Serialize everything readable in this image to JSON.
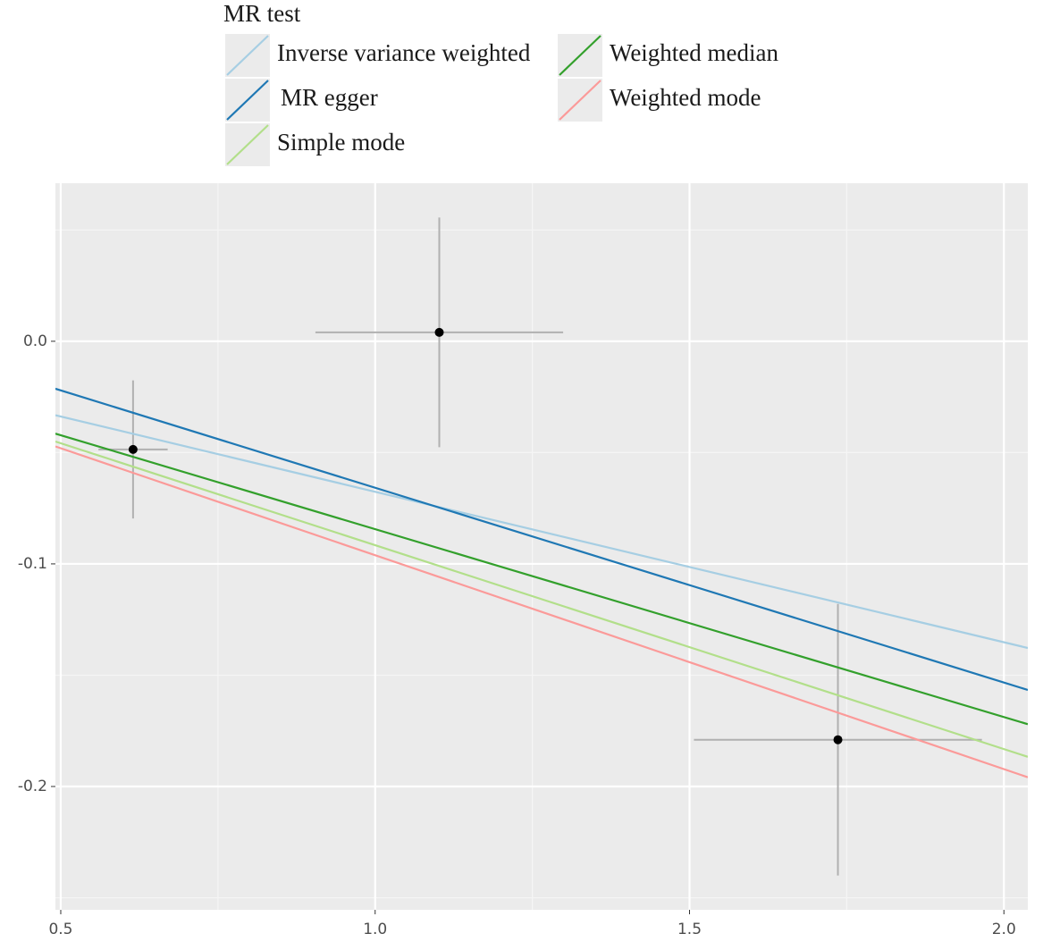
{
  "chart_data": {
    "type": "scatter",
    "legend_title": "MR test",
    "x": [
      0.615,
      1.102,
      1.736
    ],
    "y": [
      -0.0486,
      0.004,
      -0.179
    ],
    "x_err": [
      0.055,
      0.197,
      0.229
    ],
    "y_err": [
      0.031,
      0.0516,
      0.061
    ],
    "point_color": "#000000",
    "errorbar_color": "#b0b0b0",
    "lines": [
      {
        "name": "Inverse variance weighted",
        "color": "#a6cee3",
        "intercept": 0,
        "slope": -0.0676
      },
      {
        "name": "MR egger",
        "color": "#1f78b4",
        "intercept": 0.0217,
        "slope": -0.0875
      },
      {
        "name": "Simple mode",
        "color": "#b2df8a",
        "intercept": 0,
        "slope": -0.0916
      },
      {
        "name": "Weighted median",
        "color": "#33a02c",
        "intercept": 0,
        "slope": -0.0844
      },
      {
        "name": "Weighted mode",
        "color": "#fb9a99",
        "intercept": 0,
        "slope": -0.0961
      }
    ],
    "xlim": [
      0.4915,
      2.038
    ],
    "ylim": [
      -0.2554,
      0.071
    ],
    "xticks": [
      {
        "value": 0.5,
        "label": "0.5"
      },
      {
        "value": 1,
        "label": "1.0"
      },
      {
        "value": 1.5,
        "label": "1.5"
      },
      {
        "value": 2,
        "label": "2.0"
      }
    ],
    "yticks": [
      {
        "value": 0,
        "label": "0.0"
      },
      -0.1,
      -0.2
    ],
    "grid": true
  }
}
